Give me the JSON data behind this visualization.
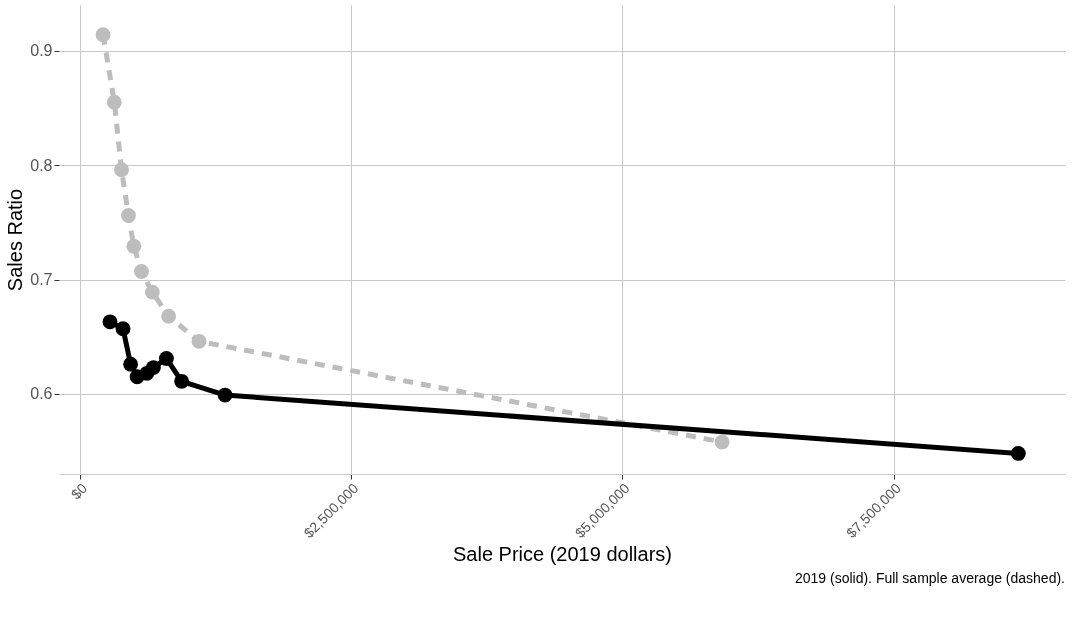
{
  "chart_data": {
    "type": "line",
    "xlabel": "Sale Price (2019 dollars)",
    "ylabel": "Sales Ratio",
    "xlim": [
      -190000,
      9080000
    ],
    "ylim": [
      0.53,
      0.94
    ],
    "xticks": [
      {
        "value": 0,
        "label": "$0"
      },
      {
        "value": 2500000,
        "label": "$2,500,000"
      },
      {
        "value": 5000000,
        "label": "$5,000,000"
      },
      {
        "value": 7500000,
        "label": "$7,500,000"
      }
    ],
    "yticks": [
      0.6,
      0.7,
      0.8,
      0.9
    ],
    "grid": true,
    "marker": "circle",
    "series": [
      {
        "color": "#bdbdbd",
        "line_style": "dashed",
        "x": [
          216000,
          320000,
          386000,
          450000,
          500000,
          570000,
          670000,
          820000,
          1100000,
          5920000
        ],
        "values": [
          0.914,
          0.855,
          0.796,
          0.756,
          0.729,
          0.707,
          0.689,
          0.668,
          0.646,
          0.558
        ]
      },
      {
        "color": "#000000",
        "line_style": "solid",
        "x": [
          280000,
          400000,
          470000,
          530000,
          620000,
          680000,
          800000,
          940000,
          1340000,
          8650000
        ],
        "values": [
          0.663,
          0.657,
          0.626,
          0.615,
          0.618,
          0.623,
          0.631,
          0.611,
          0.599,
          0.548
        ]
      }
    ],
    "annotations": [
      "2019 (solid). Full sample average (dashed)."
    ]
  }
}
